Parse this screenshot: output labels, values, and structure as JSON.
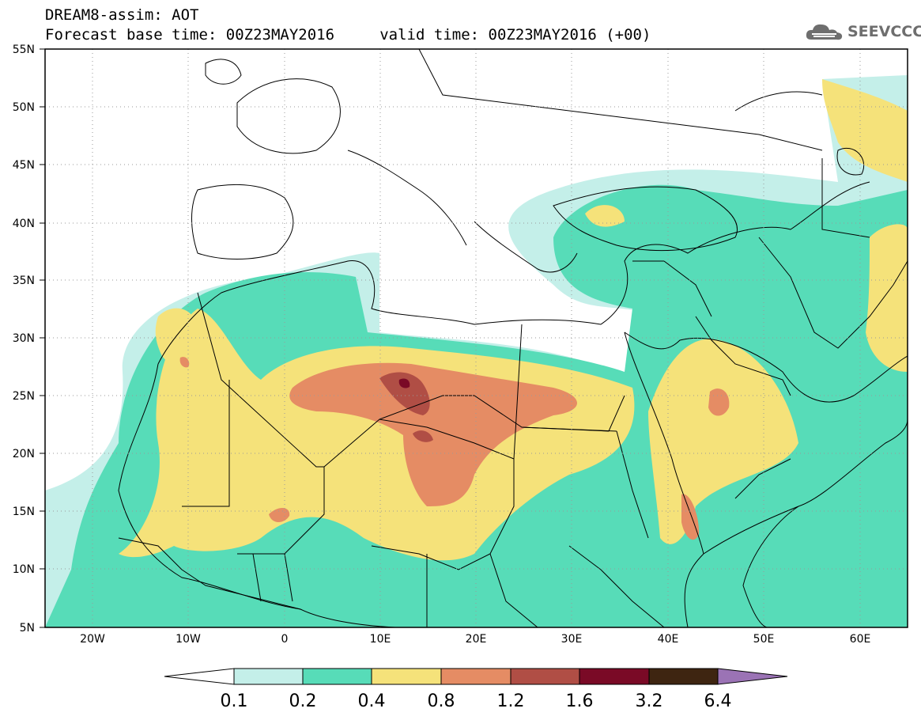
{
  "header": {
    "line1": "DREAM8-assim: AOT",
    "line2": "Forecast base time: 00Z23MAY2016     valid time: 00Z23MAY2016 (+00)"
  },
  "logo": {
    "text": "SEEVCCC",
    "icon": "cloud-icon"
  },
  "map": {
    "projection": "lat-lon",
    "lon_range": [
      -25,
      65
    ],
    "lat_range": [
      5,
      55
    ],
    "lat_ticks": [
      "55N",
      "50N",
      "45N",
      "40N",
      "35N",
      "30N",
      "25N",
      "20N",
      "15N",
      "10N",
      "5N"
    ],
    "lon_ticks": [
      "20W",
      "10W",
      "0",
      "10E",
      "20E",
      "30E",
      "40E",
      "50E",
      "60E"
    ],
    "gridlines": "dotted"
  },
  "colorbar": {
    "labels": [
      "0.1",
      "0.2",
      "0.4",
      "0.8",
      "1.2",
      "1.6",
      "3.2",
      "6.4"
    ],
    "colors": {
      "lt_0_1": "#ffffff",
      "0_1_to_0_2": "#c4efe9",
      "0_2_to_0_4": "#57dcb8",
      "0_4_to_0_8": "#f5e27a",
      "0_8_to_1_2": "#e58c64",
      "1_2_to_1_6": "#b04e45",
      "1_6_to_3_2": "#7a0a26",
      "3_2_to_6_4": "#3e2511",
      "gt_6_4": "#9b73b5"
    }
  }
}
